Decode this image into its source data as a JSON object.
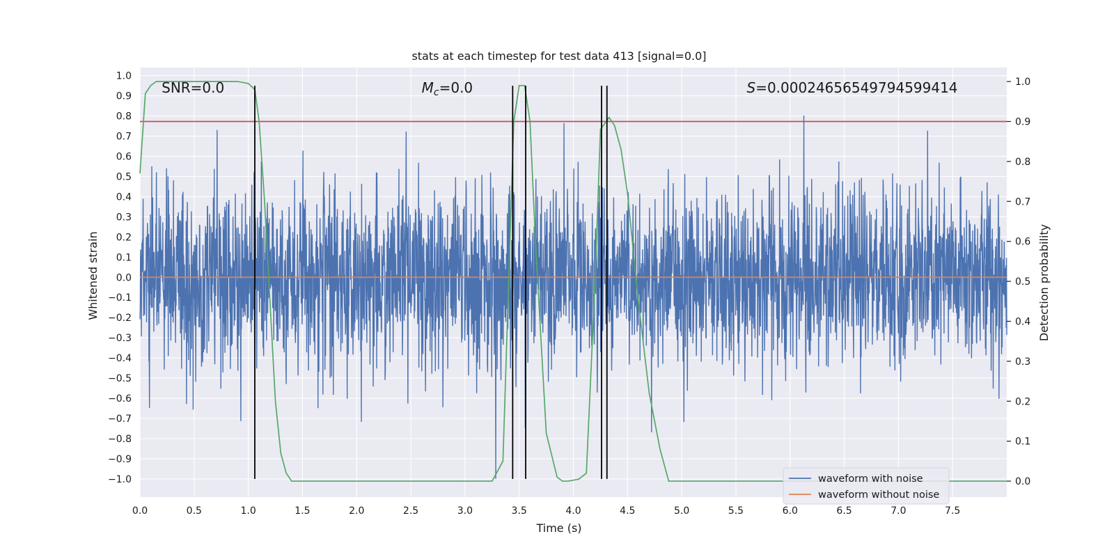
{
  "chart_data": {
    "type": "line",
    "title": "stats at each timestep for test data 413 [signal=0.0]",
    "xlabel": "Time (s)",
    "ylabel": "Whitened strain",
    "y2label": "Detection probability",
    "xlim": [
      0.0,
      8.0
    ],
    "ylim": [
      -1.09,
      1.04
    ],
    "y2lim": [
      -0.04,
      1.035
    ],
    "xticks": [
      0.0,
      0.5,
      1.0,
      1.5,
      2.0,
      2.5,
      3.0,
      3.5,
      4.0,
      4.5,
      5.0,
      5.5,
      6.0,
      6.5,
      7.0,
      7.5
    ],
    "xtick_labels": [
      "0.0",
      "0.5",
      "1.0",
      "1.5",
      "2.0",
      "2.5",
      "3.0",
      "3.5",
      "4.0",
      "4.5",
      "5.0",
      "5.5",
      "6.0",
      "6.5",
      "7.0",
      "7.5"
    ],
    "yticks": [
      1.0,
      0.9,
      0.8,
      0.7,
      0.6,
      0.5,
      0.4,
      0.3,
      0.2,
      0.1,
      0.0,
      -0.1,
      -0.2,
      -0.3,
      -0.4,
      -0.5,
      -0.6,
      -0.7,
      -0.8,
      -0.9,
      -1.0
    ],
    "ytick_labels": [
      "1.0",
      "0.9",
      "0.8",
      "0.7",
      "0.6",
      "0.5",
      "0.4",
      "0.3",
      "0.2",
      "0.1",
      "0.0",
      "−0.1",
      "−0.2",
      "−0.3",
      "−0.4",
      "−0.5",
      "−0.6",
      "−0.7",
      "−0.8",
      "−0.9",
      "−1.0"
    ],
    "y2ticks": [
      1.0,
      0.9,
      0.8,
      0.7,
      0.6,
      0.5,
      0.4,
      0.3,
      0.2,
      0.1,
      0.0
    ],
    "y2tick_labels": [
      "1.0",
      "0.9",
      "0.8",
      "0.7",
      "0.6",
      "0.5",
      "0.4",
      "0.3",
      "0.2",
      "0.1",
      "0.0"
    ],
    "grid": true,
    "legend_position": "lower-right",
    "series": [
      {
        "name": "waveform with noise",
        "color": "#4c72b0",
        "kind": "noise",
        "typical_amplitude": 0.45,
        "peak_amplitude": 1.0,
        "x_range": [
          0.0,
          8.0
        ]
      },
      {
        "name": "waveform without noise",
        "color": "#dd8452",
        "x": [
          0.0,
          8.0
        ],
        "y": [
          0.0,
          0.0
        ]
      },
      {
        "color": "#55a868",
        "axis": "right",
        "x": [
          0.0,
          0.05,
          0.1,
          0.15,
          0.9,
          1.0,
          1.06,
          1.1,
          1.15,
          1.25,
          1.3,
          1.35,
          1.4,
          1.5,
          3.2,
          3.25,
          3.35,
          3.45,
          3.5,
          3.55,
          3.6,
          3.65,
          3.75,
          3.85,
          3.9,
          3.95,
          4.05,
          4.12,
          4.2,
          4.25,
          4.33,
          4.38,
          4.44,
          4.5,
          4.6,
          4.7,
          4.8,
          4.88,
          4.95,
          5.5,
          8.0
        ],
        "y": [
          0.77,
          0.97,
          0.99,
          1.0,
          1.0,
          0.995,
          0.98,
          0.9,
          0.7,
          0.2,
          0.07,
          0.02,
          0.0,
          0.0,
          0.0,
          0.0,
          0.05,
          0.9,
          0.99,
          0.99,
          0.9,
          0.6,
          0.12,
          0.01,
          0.0,
          0.0,
          0.005,
          0.02,
          0.5,
          0.88,
          0.91,
          0.89,
          0.83,
          0.72,
          0.45,
          0.22,
          0.08,
          0.0,
          0.0,
          0.0,
          0.0
        ]
      },
      {
        "color": "#c44e52",
        "axis": "right",
        "x": [
          0.0,
          8.0
        ],
        "y": [
          0.9,
          0.9
        ]
      }
    ],
    "vertical_markers": {
      "color": "#000000",
      "x": [
        1.06,
        3.44,
        3.56,
        4.26,
        4.31
      ],
      "y_range": [
        -1.0,
        0.95
      ]
    },
    "annotations": [
      {
        "id": "snr",
        "text": "SNR=0.0",
        "x": 0.2,
        "y": 0.94,
        "anchor": "start"
      },
      {
        "id": "mc",
        "text": "=0.0",
        "math_symbol": "M",
        "math_sub": "c",
        "x": 2.6,
        "y": 0.94,
        "anchor": "start"
      },
      {
        "id": "s",
        "text": "=0.00024656549794599414",
        "math_symbol": "S",
        "x": 5.6,
        "y": 0.94,
        "anchor": "start"
      }
    ]
  }
}
